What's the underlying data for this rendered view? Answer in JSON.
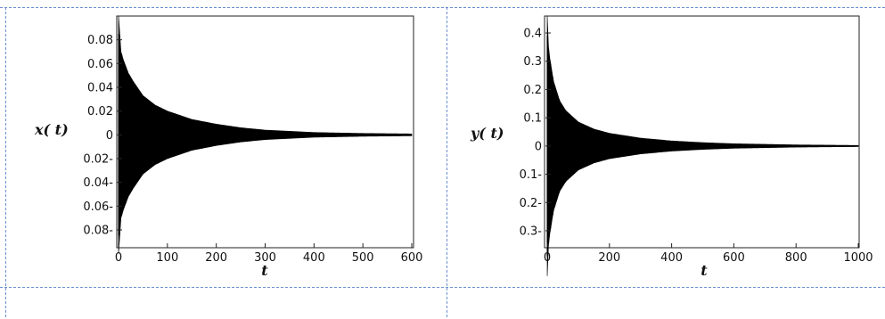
{
  "chart_data": [
    {
      "type": "line",
      "title": "",
      "xlabel": "t",
      "ylabel": "x( t)",
      "xlim": [
        0,
        600
      ],
      "ylim": [
        -0.095,
        0.1
      ],
      "xticks": [
        0,
        100,
        200,
        300,
        400,
        500,
        600
      ],
      "xtick_labels": [
        "0",
        "100",
        "200",
        "300",
        "400",
        "500",
        "600"
      ],
      "yticks": [
        0.08,
        0.06,
        0.04,
        0.02,
        0,
        -0.02,
        -0.04,
        -0.06,
        -0.08
      ],
      "ytick_labels": [
        "0.08",
        "0.06",
        "0.04",
        "0.02",
        "0",
        "0.02-",
        "0.04-",
        "0.06-",
        "0.08-"
      ],
      "envelope": {
        "t": [
          0,
          5,
          10,
          20,
          30,
          50,
          75,
          100,
          150,
          200,
          250,
          300,
          350,
          400,
          500,
          600
        ],
        "amplitude": [
          0.1,
          0.07,
          0.063,
          0.052,
          0.045,
          0.033,
          0.025,
          0.02,
          0.013,
          0.009,
          0.006,
          0.004,
          0.003,
          0.002,
          0.0012,
          0.0008
        ]
      },
      "grid": false,
      "color": "#000000"
    },
    {
      "type": "line",
      "title": "",
      "xlabel": "t",
      "ylabel": "y( t)",
      "xlim": [
        0,
        1000
      ],
      "ylim": [
        -0.36,
        0.46
      ],
      "xticks": [
        0,
        200,
        400,
        600,
        800,
        1000
      ],
      "xtick_labels": [
        "0",
        "200",
        "400",
        "600",
        "800",
        "1000"
      ],
      "yticks": [
        0.4,
        0.3,
        0.2,
        0.1,
        0,
        -0.1,
        -0.2,
        -0.3
      ],
      "ytick_labels": [
        "0.4",
        "0.3",
        "0.2",
        "0.1",
        "0",
        "0.1-",
        "0.2-",
        "0.3-"
      ],
      "envelope": {
        "t": [
          0,
          5,
          10,
          20,
          40,
          60,
          100,
          150,
          200,
          300,
          400,
          500,
          600,
          800,
          1000
        ],
        "amplitude": [
          0.46,
          0.33,
          0.3,
          0.23,
          0.16,
          0.125,
          0.085,
          0.06,
          0.045,
          0.028,
          0.018,
          0.012,
          0.008,
          0.004,
          0.002
        ]
      },
      "grid": false,
      "color": "#000000"
    }
  ]
}
